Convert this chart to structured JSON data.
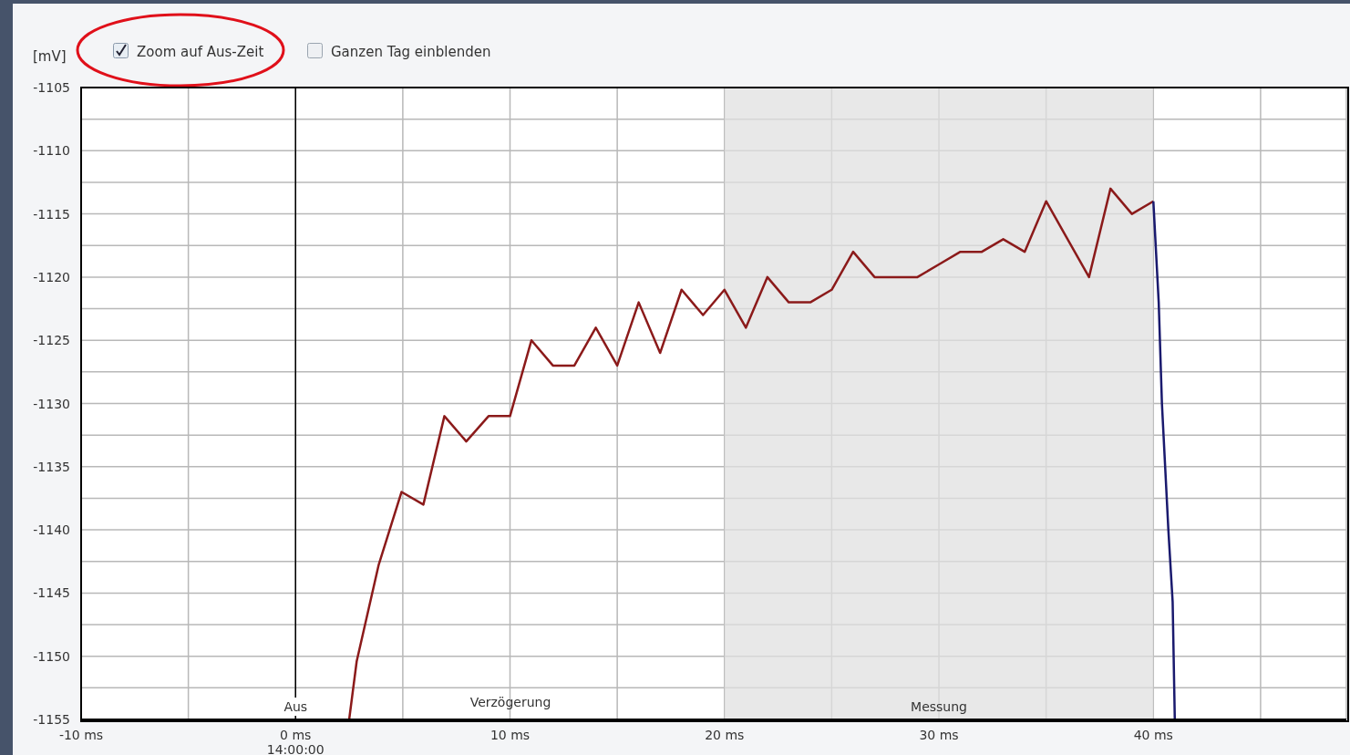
{
  "chart_data": {
    "type": "line",
    "ylabel": "[mV]",
    "annotations": [
      "Zoom auf Aus-Zeit",
      "Ganzen Tag einblenden",
      "Verzögerung"
    ],
    "series": [
      {
        "color": "#8b1a1a",
        "x": [
          2.5,
          2.85,
          3.87,
          4.94,
          5.96,
          6.94,
          7.96,
          9,
          10,
          11,
          12,
          13,
          14,
          15,
          16,
          17,
          18,
          19,
          20,
          21,
          22,
          23,
          24,
          25,
          26,
          27,
          28,
          29,
          30,
          31,
          32,
          33,
          34,
          35,
          37,
          38,
          39,
          40
        ],
        "values": [
          -1155,
          -1150.4,
          -1142.8,
          -1137,
          -1138,
          -1131,
          -1133,
          -1131,
          -1131,
          -1125,
          -1127,
          -1127,
          -1124,
          -1127,
          -1122,
          -1126,
          -1121,
          -1123,
          -1121,
          -1124,
          -1120,
          -1122,
          -1122,
          -1121,
          -1118,
          -1120,
          -1120,
          -1120,
          -1119,
          -1118,
          -1118,
          -1117,
          -1118,
          -1114,
          -1120,
          -1113,
          -1115,
          -1114
        ]
      },
      {
        "color": "#1a1a6e",
        "x": [
          40,
          40.25,
          40.4,
          40.7,
          40.9,
          41
        ],
        "values": [
          -1114,
          -1122,
          -1130,
          -1140,
          -1145.7,
          -1155
        ]
      }
    ],
    "xlim": [
      -10,
      49
    ],
    "xticks": [
      {
        "value": -10,
        "label": "-10 ms"
      },
      {
        "value": -5,
        "label": null
      },
      {
        "value": 0,
        "label": "0 ms\n14:00:00"
      },
      {
        "value": 5,
        "label": null
      },
      {
        "value": 10,
        "label": "10 ms"
      },
      {
        "value": 15,
        "label": null
      },
      {
        "value": 20,
        "label": "20 ms"
      },
      {
        "value": 25,
        "label": null
      },
      {
        "value": 30,
        "label": "30 ms"
      },
      {
        "value": 35,
        "label": null
      },
      {
        "value": 40,
        "label": "40 ms"
      },
      {
        "value": 45,
        "label": null
      }
    ],
    "ylim": [
      -1155,
      -1105
    ],
    "yticks": [
      -1155,
      {
        "value": -1152.5,
        "label": null
      },
      -1150,
      {
        "value": -1147.5,
        "label": null
      },
      -1145,
      {
        "value": -1142.5,
        "label": null
      },
      -1140,
      {
        "value": -1137.5,
        "label": null
      },
      -1135,
      {
        "value": -1132.5,
        "label": null
      },
      -1130,
      {
        "value": -1127.5,
        "label": null
      },
      -1125,
      {
        "value": -1122.5,
        "label": null
      },
      -1120,
      {
        "value": -1117.5,
        "label": null
      },
      -1115,
      {
        "value": -1112.5,
        "label": null
      },
      -1110,
      {
        "value": -1107.5,
        "label": null
      },
      -1105
    ],
    "ref_lines": [
      {
        "axis": "x",
        "value": 0,
        "label": "Aus",
        "color": "#000000"
      }
    ],
    "bands": [
      {
        "axis": "x",
        "from": 20,
        "to": 40,
        "label": "Messung",
        "color": "#e0e0e0"
      }
    ],
    "grid": true,
    "legend": false,
    "marker": "none",
    "line_style": "solid"
  }
}
